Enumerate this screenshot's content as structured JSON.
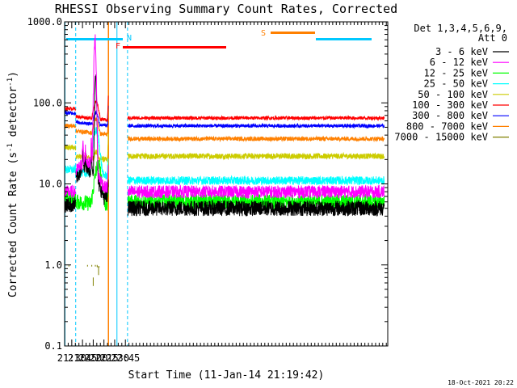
{
  "chart_data": {
    "type": "line",
    "title": "RHESSI Observing Summary Count Rates, Corrected",
    "xlabel": "Start Time (11-Jan-14 21:19:42)",
    "ylabel_main": "Corrected Count Rate (s",
    "ylabel_sup1": "-1",
    "ylabel_mid": " detector",
    "ylabel_sup2": "-1",
    "ylabel_end": ")",
    "yscale": "log",
    "xlim_min": [
      1280,
      1732
    ],
    "ylim": [
      0.1,
      1000
    ],
    "x_ticks": [
      {
        "min": 1290,
        "label": "21:30"
      },
      {
        "min": 1305,
        "label": "21:45"
      },
      {
        "min": 1320,
        "label": "22:00"
      },
      {
        "min": 1335,
        "label": "22:15"
      },
      {
        "min": 1350,
        "label": "22:30"
      },
      {
        "min": 1365,
        "label": "22:45"
      }
    ],
    "y_ticks": [
      {
        "value": 1000,
        "label": "1000.0"
      },
      {
        "value": 100,
        "label": "100.0"
      },
      {
        "value": 10,
        "label": "10.0"
      },
      {
        "value": 1,
        "label": "1.0"
      },
      {
        "value": 0.1,
        "label": "0.1"
      }
    ],
    "legend_header_1": "Det 1,3,4,5,6,9,",
    "legend_header_2": "Att 0",
    "legend_position": "right",
    "series": [
      {
        "name": "3 - 6 keV",
        "color": "#000000"
      },
      {
        "name": "6 - 12 keV",
        "color": "#ff00ff"
      },
      {
        "name": "12 - 25 keV",
        "color": "#00ff00"
      },
      {
        "name": "25 - 50 keV",
        "color": "#00ffff"
      },
      {
        "name": "50 - 100 keV",
        "color": "#cccc00"
      },
      {
        "name": "100 - 300 keV",
        "color": "#ff0000"
      },
      {
        "name": "300 - 800 keV",
        "color": "#0000ff"
      },
      {
        "name": "800 - 7000 keV",
        "color": "#ff8000"
      },
      {
        "name": "7000 - 15000 keV",
        "color": "#808000"
      }
    ],
    "flags": [
      {
        "label": "N",
        "color": "#00c8ff",
        "label_color": "#00c8ff"
      },
      {
        "label": "F",
        "color": "#ff0000",
        "label_color": "#ff0000"
      },
      {
        "label": "S",
        "color": "#ff8000",
        "label_color": "#ff8000"
      }
    ],
    "footer_date": "18-Oct-2021 20:22"
  }
}
